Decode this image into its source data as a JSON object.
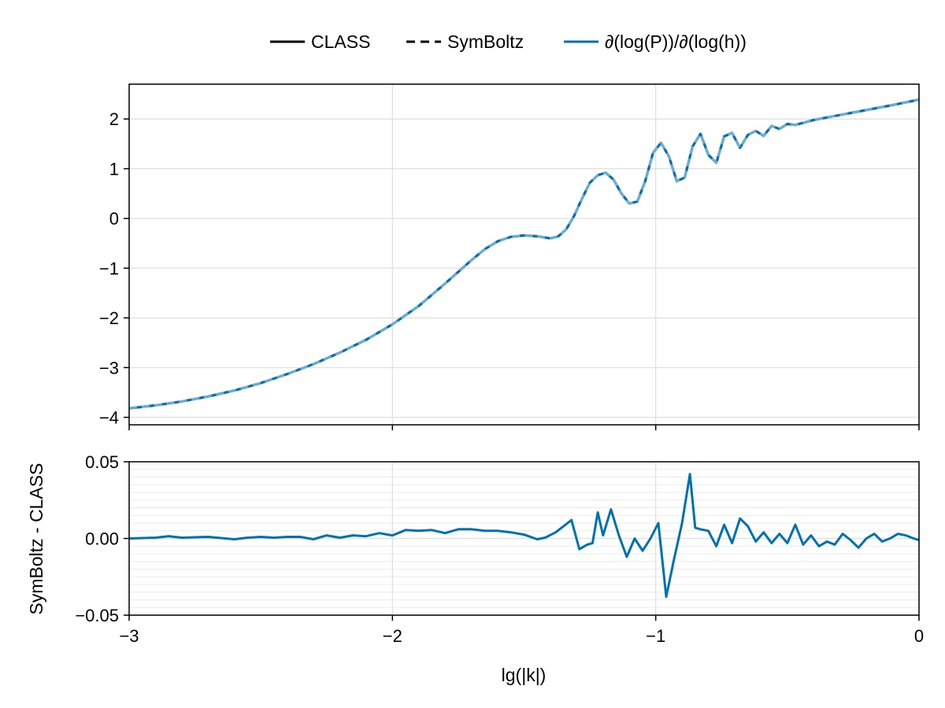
{
  "chart_data": [
    {
      "type": "line",
      "panel": "top",
      "title": "",
      "xlabel": "",
      "ylabel": "",
      "xlim": [
        -3,
        0
      ],
      "ylim": [
        -4.15,
        2.7
      ],
      "xticks": [
        -3,
        -2,
        -1,
        0
      ],
      "yticks": [
        -4,
        -3,
        -2,
        -1,
        0,
        1,
        2
      ],
      "ytick_labels": [
        "−4",
        "−3",
        "−2",
        "−1",
        "0",
        "1",
        "2"
      ],
      "grid": true,
      "legend": {
        "placement": "top-center",
        "entries": [
          {
            "label": "CLASS",
            "style": "solid",
            "color": "#000000"
          },
          {
            "label": "SymBoltz",
            "style": "dashed",
            "color": "#000000"
          },
          {
            "label": "∂(log(P))/∂(log(h))",
            "style": "solid",
            "color": "#0072b2"
          }
        ]
      },
      "x": [
        -3.0,
        -2.9,
        -2.8,
        -2.7,
        -2.6,
        -2.5,
        -2.4,
        -2.3,
        -2.2,
        -2.1,
        -2.0,
        -1.9,
        -1.8,
        -1.7,
        -1.65,
        -1.6,
        -1.55,
        -1.5,
        -1.45,
        -1.4,
        -1.37,
        -1.34,
        -1.31,
        -1.28,
        -1.25,
        -1.22,
        -1.19,
        -1.16,
        -1.13,
        -1.1,
        -1.07,
        -1.04,
        -1.01,
        -0.98,
        -0.95,
        -0.92,
        -0.89,
        -0.86,
        -0.83,
        -0.8,
        -0.77,
        -0.74,
        -0.71,
        -0.68,
        -0.65,
        -0.62,
        -0.59,
        -0.56,
        -0.53,
        -0.5,
        -0.47,
        -0.4,
        -0.3,
        -0.2,
        -0.1,
        0.0
      ],
      "series": [
        {
          "name": "∂(log(P))/∂(log(h))",
          "color": "#0072b2",
          "values": [
            -3.82,
            -3.76,
            -3.68,
            -3.58,
            -3.46,
            -3.31,
            -3.13,
            -2.93,
            -2.7,
            -2.44,
            -2.13,
            -1.76,
            -1.31,
            -0.84,
            -0.62,
            -0.46,
            -0.37,
            -0.34,
            -0.36,
            -0.4,
            -0.36,
            -0.22,
            0.05,
            0.4,
            0.72,
            0.87,
            0.92,
            0.78,
            0.5,
            0.3,
            0.34,
            0.75,
            1.32,
            1.52,
            1.25,
            0.75,
            0.82,
            1.45,
            1.7,
            1.28,
            1.12,
            1.65,
            1.72,
            1.42,
            1.68,
            1.76,
            1.66,
            1.86,
            1.8,
            1.9,
            1.88,
            1.98,
            2.08,
            2.18,
            2.28,
            2.39
          ]
        }
      ]
    },
    {
      "type": "line",
      "panel": "bottom",
      "title": "",
      "xlabel": "lg(|k|)",
      "ylabel": "SymBoltz - CLASS",
      "xlim": [
        -3,
        0
      ],
      "ylim": [
        -0.05,
        0.05
      ],
      "xticks": [
        -3,
        -2,
        -1,
        0
      ],
      "xtick_labels": [
        "−3",
        "−2",
        "−1",
        "0"
      ],
      "yticks": [
        -0.05,
        0.0,
        0.05
      ],
      "ytick_labels": [
        "−0.05",
        "0.00",
        "0.05"
      ],
      "grid": true,
      "x": [
        -3.0,
        -2.9,
        -2.85,
        -2.8,
        -2.7,
        -2.6,
        -2.55,
        -2.5,
        -2.45,
        -2.4,
        -2.35,
        -2.3,
        -2.25,
        -2.2,
        -2.15,
        -2.1,
        -2.05,
        -2.0,
        -1.95,
        -1.9,
        -1.85,
        -1.8,
        -1.75,
        -1.7,
        -1.65,
        -1.6,
        -1.55,
        -1.5,
        -1.45,
        -1.42,
        -1.38,
        -1.35,
        -1.32,
        -1.29,
        -1.26,
        -1.24,
        -1.22,
        -1.2,
        -1.17,
        -1.14,
        -1.11,
        -1.08,
        -1.05,
        -1.02,
        -0.99,
        -0.96,
        -0.93,
        -0.9,
        -0.87,
        -0.85,
        -0.83,
        -0.8,
        -0.77,
        -0.74,
        -0.71,
        -0.68,
        -0.65,
        -0.62,
        -0.59,
        -0.56,
        -0.53,
        -0.5,
        -0.47,
        -0.44,
        -0.41,
        -0.38,
        -0.35,
        -0.32,
        -0.29,
        -0.26,
        -0.23,
        -0.2,
        -0.17,
        -0.14,
        -0.11,
        -0.08,
        -0.05,
        -0.02,
        0.0
      ],
      "series": [
        {
          "name": "",
          "color": "#0072b2",
          "values": [
            0.0,
            0.0005,
            0.0015,
            0.0005,
            0.001,
            -0.0005,
            0.0005,
            0.001,
            0.0005,
            0.001,
            0.001,
            -0.0005,
            0.002,
            0.0005,
            0.002,
            0.0015,
            0.0035,
            0.002,
            0.0055,
            0.005,
            0.0055,
            0.0035,
            0.006,
            0.006,
            0.005,
            0.005,
            0.004,
            0.0025,
            -0.0005,
            0.0005,
            0.004,
            0.008,
            0.012,
            -0.007,
            -0.004,
            -0.003,
            0.017,
            0.002,
            0.019,
            0.002,
            -0.012,
            0.0,
            -0.008,
            0.0,
            0.01,
            -0.038,
            -0.013,
            0.01,
            0.042,
            0.007,
            0.006,
            0.005,
            -0.005,
            0.009,
            -0.003,
            0.013,
            0.008,
            -0.002,
            0.004,
            -0.003,
            0.003,
            -0.003,
            0.009,
            -0.004,
            0.002,
            -0.005,
            -0.002,
            -0.004,
            0.003,
            -0.001,
            -0.006,
            0.0,
            0.003,
            -0.002,
            0.0,
            0.003,
            0.002,
            0.0,
            -0.001
          ]
        }
      ]
    }
  ]
}
